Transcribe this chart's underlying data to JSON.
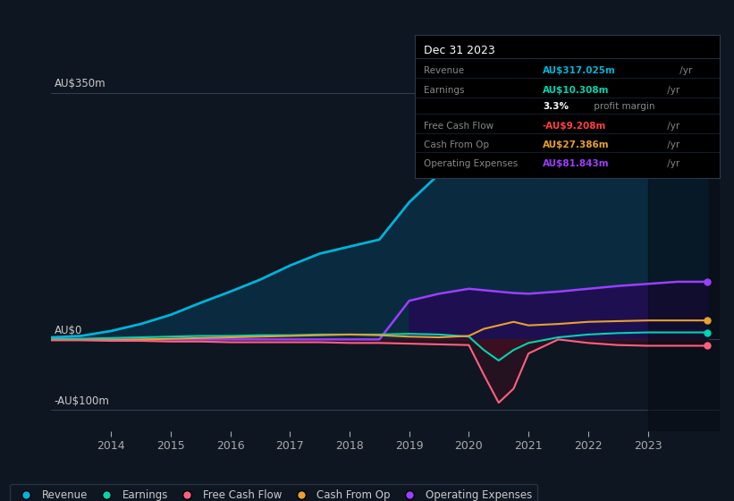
{
  "background_color": "#0e1621",
  "chart_bg": "#0e1621",
  "title": "Dec 31 2023",
  "ylabel_top": "AU$350m",
  "ylabel_zero": "AU$0",
  "ylabel_bot": "-AU$100m",
  "years": [
    2013.0,
    2013.5,
    2014.0,
    2014.5,
    2015.0,
    2015.5,
    2016.0,
    2016.5,
    2017.0,
    2017.5,
    2018.0,
    2018.5,
    2019.0,
    2019.5,
    2020.0,
    2020.25,
    2020.5,
    2020.75,
    2021.0,
    2021.5,
    2022.0,
    2022.5,
    2023.0,
    2023.5,
    2024.0
  ],
  "revenue": [
    3,
    5,
    12,
    22,
    35,
    52,
    68,
    85,
    105,
    122,
    132,
    142,
    195,
    235,
    248,
    247,
    245,
    244,
    244,
    255,
    262,
    272,
    288,
    312,
    317
  ],
  "earnings": [
    1,
    1,
    2,
    3,
    4,
    5,
    5,
    6,
    6,
    7,
    7,
    7,
    8,
    7,
    4,
    -15,
    -30,
    -15,
    -5,
    3,
    7,
    9,
    10,
    10,
    10
  ],
  "free_cf": [
    -1,
    -1,
    -2,
    -2,
    -3,
    -3,
    -4,
    -4,
    -4,
    -4,
    -5,
    -5,
    -6,
    -7,
    -8,
    -50,
    -90,
    -70,
    -20,
    0,
    -5,
    -8,
    -9,
    -9,
    -9
  ],
  "cash_op": [
    -1,
    -1,
    -1,
    0,
    1,
    2,
    3,
    4,
    5,
    6,
    7,
    6,
    4,
    3,
    5,
    15,
    20,
    25,
    20,
    22,
    25,
    26,
    27,
    27,
    27
  ],
  "opex": [
    0,
    0,
    0,
    0,
    0,
    0,
    0,
    0,
    0,
    0,
    0,
    0,
    55,
    65,
    72,
    70,
    68,
    66,
    65,
    68,
    72,
    76,
    79,
    82,
    82
  ],
  "colors": {
    "revenue": "#00b4d8",
    "revenue_fill": "#0a2a40",
    "earnings": "#00d4b0",
    "earnings_neg_fill": "#3a1020",
    "free_cf": "#ff6080",
    "cash_op": "#e8a030",
    "opex": "#9b3fff",
    "opex_fill": "#1e1050"
  },
  "info_box": {
    "rows": [
      {
        "label": "Revenue",
        "value": "AU$317.025m",
        "suffix": " /yr",
        "val_color": "#00b4d8"
      },
      {
        "label": "Earnings",
        "value": "AU$10.308m",
        "suffix": " /yr",
        "val_color": "#00d4b0"
      },
      {
        "label": "",
        "value": "3.3%",
        "suffix": " profit margin",
        "val_color": "#ffffff"
      },
      {
        "label": "Free Cash Flow",
        "value": "-AU$9.208m",
        "suffix": " /yr",
        "val_color": "#ff4040"
      },
      {
        "label": "Cash From Op",
        "value": "AU$27.386m",
        "suffix": " /yr",
        "val_color": "#e8a030"
      },
      {
        "label": "Operating Expenses",
        "value": "AU$81.843m",
        "suffix": " /yr",
        "val_color": "#9b3fff"
      }
    ]
  },
  "legend_items": [
    {
      "label": "Revenue",
      "color": "#00b4d8"
    },
    {
      "label": "Earnings",
      "color": "#00d4b0"
    },
    {
      "label": "Free Cash Flow",
      "color": "#ff6080"
    },
    {
      "label": "Cash From Op",
      "color": "#e8a030"
    },
    {
      "label": "Operating Expenses",
      "color": "#9b3fff"
    }
  ],
  "xticks": [
    2014,
    2015,
    2016,
    2017,
    2018,
    2019,
    2020,
    2021,
    2022,
    2023
  ],
  "ylim": [
    -130,
    390
  ],
  "xlim": [
    2013.0,
    2024.2
  ],
  "hlines": [
    350,
    0,
    -100
  ],
  "dark_region_start": 2023.0
}
